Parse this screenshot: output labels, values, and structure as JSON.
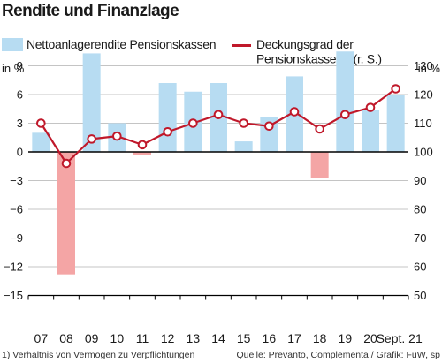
{
  "title": "Rendite und Finanzlage",
  "legend": {
    "bar_label": "Nettoanlagerendite Pensionskassen",
    "line_label": "Deckungsgrad der Pensionskassen",
    "line_footnote_mark": "1",
    "line_suffix": " (r. S.)"
  },
  "units": {
    "left": "in %",
    "right": "in %"
  },
  "footnote": "1) Verhältnis von Vermögen zu Verpflichtungen",
  "source": "Quelle: Prevanto, Complementa / Grafik: FuW, sp",
  "colors": {
    "bar_positive": "#b7dcf2",
    "bar_negative": "#f4a5a5",
    "line": "#c0182a",
    "marker_fill": "#ffffff",
    "grid": "#b0b0b0",
    "axis": "#000000"
  },
  "chart_data": {
    "type": "bar+line",
    "categories": [
      "07",
      "08",
      "09",
      "10",
      "11",
      "12",
      "13",
      "14",
      "15",
      "16",
      "17",
      "18",
      "19",
      "20",
      "Sept. 21"
    ],
    "series": [
      {
        "name": "Nettoanlagerendite Pensionskassen",
        "type": "bar",
        "axis": "left",
        "values": [
          2.0,
          -12.8,
          10.3,
          3.0,
          -0.3,
          7.2,
          6.3,
          7.2,
          1.1,
          3.6,
          7.9,
          -2.7,
          10.5,
          4.4,
          6.0
        ]
      },
      {
        "name": "Deckungsgrad der Pensionskassen",
        "type": "line",
        "axis": "right",
        "values": [
          110,
          96,
          104.5,
          105.5,
          102.5,
          107,
          110,
          113,
          110,
          109,
          114,
          108,
          113,
          115.5,
          122
        ]
      }
    ],
    "y_left": {
      "min": -15,
      "max": 12,
      "ticks": [
        -15,
        -12,
        -9,
        -6,
        -3,
        0,
        3,
        6,
        9
      ]
    },
    "y_right": {
      "min": 50,
      "max": 140,
      "ticks": [
        50,
        60,
        70,
        80,
        90,
        100,
        110,
        120,
        130
      ]
    },
    "grid": true
  }
}
